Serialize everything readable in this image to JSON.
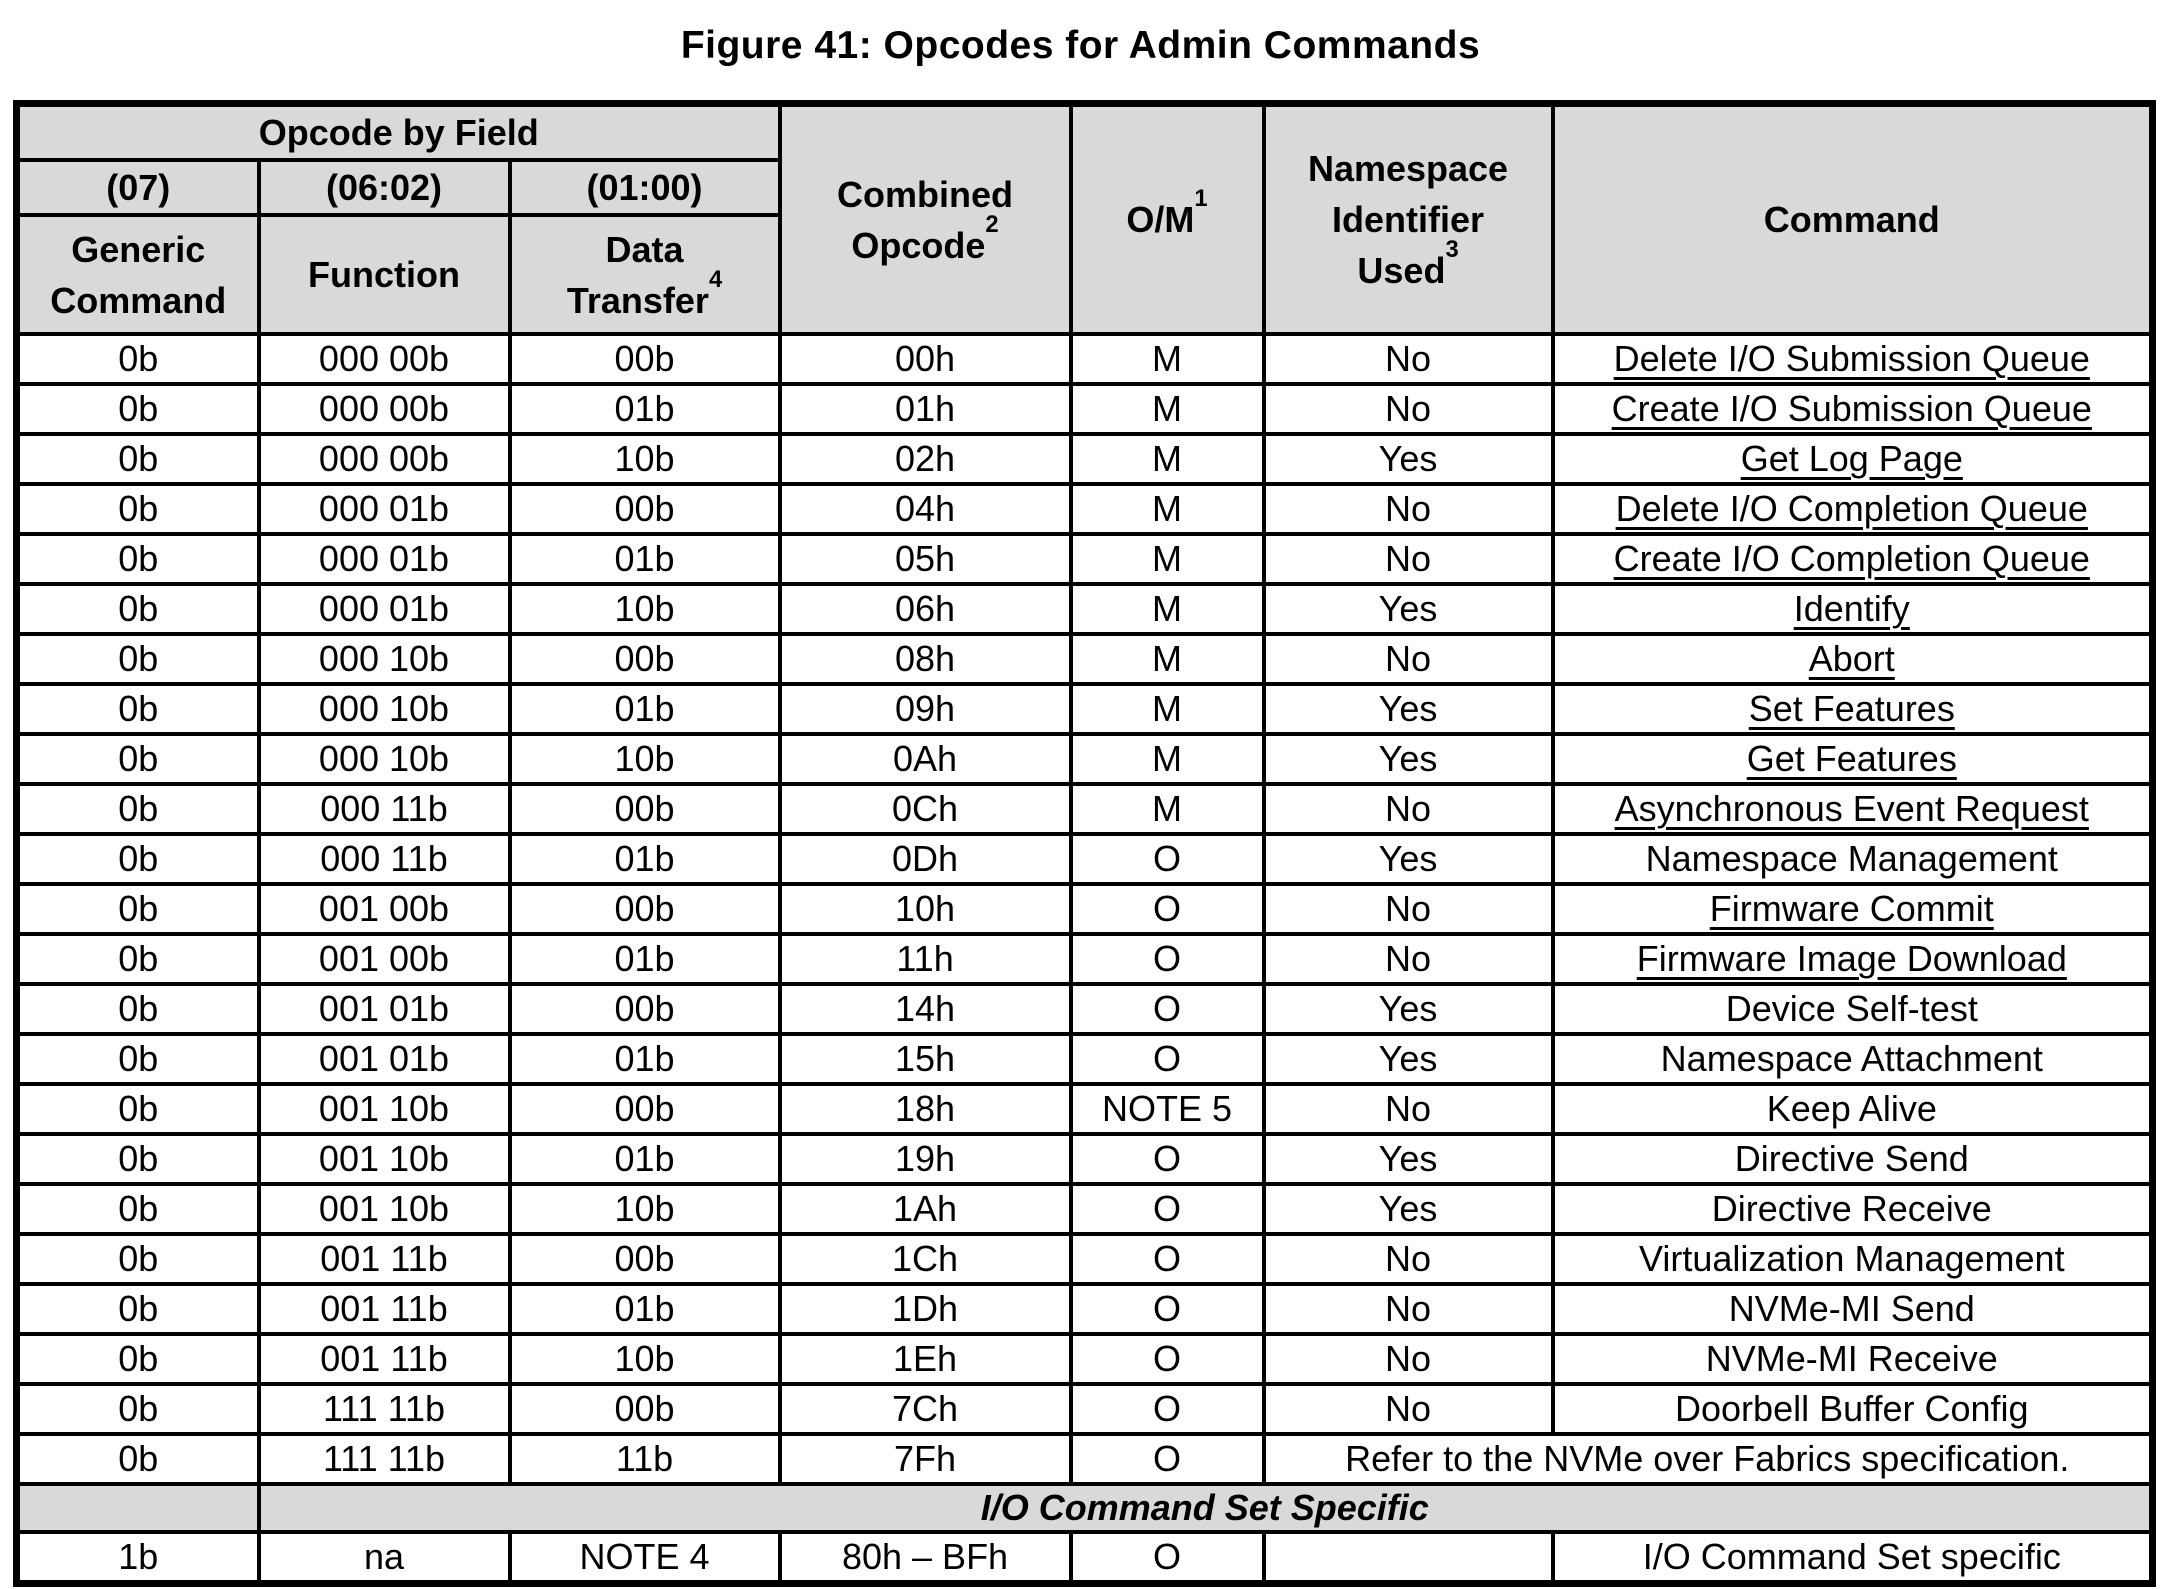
{
  "figure": {
    "title": "Figure 41: Opcodes for Admin Commands"
  },
  "colors": {
    "header_bg": "#d9d9d9",
    "border": "#000000",
    "text": "#000000",
    "page_bg": "#ffffff"
  },
  "table": {
    "header": {
      "opcode_by_field": "Opcode by Field",
      "bits_07": "(07)",
      "bits_0602": "(06:02)",
      "bits_0100": "(01:00)",
      "generic_line1": "Generic",
      "generic_line2": "Command",
      "function": "Function",
      "transfer_line1": "Data",
      "transfer_line2": "Transfer",
      "transfer_sup": "4",
      "combined_line1": "Combined",
      "combined_line2": "Opcode",
      "combined_sup": "2",
      "om": "O/M",
      "om_sup": "1",
      "nsid_line1": "Namespace",
      "nsid_line2": "Identifier",
      "nsid_line3": "Used",
      "nsid_sup": "3",
      "command": "Command"
    },
    "rows": [
      {
        "generic": "0b",
        "function": "000 00b",
        "transfer": "00b",
        "opcode": "00h",
        "om": "M",
        "nsid": "No",
        "command": "Delete I/O Submission Queue",
        "underline": true
      },
      {
        "generic": "0b",
        "function": "000 00b",
        "transfer": "01b",
        "opcode": "01h",
        "om": "M",
        "nsid": "No",
        "command": "Create I/O Submission Queue",
        "underline": true
      },
      {
        "generic": "0b",
        "function": "000 00b",
        "transfer": "10b",
        "opcode": "02h",
        "om": "M",
        "nsid": "Yes",
        "command": "Get Log Page",
        "underline": true
      },
      {
        "generic": "0b",
        "function": "000 01b",
        "transfer": "00b",
        "opcode": "04h",
        "om": "M",
        "nsid": "No",
        "command": "Delete I/O Completion Queue",
        "underline": true
      },
      {
        "generic": "0b",
        "function": "000 01b",
        "transfer": "01b",
        "opcode": "05h",
        "om": "M",
        "nsid": "No",
        "command": "Create I/O Completion Queue",
        "underline": true
      },
      {
        "generic": "0b",
        "function": "000 01b",
        "transfer": "10b",
        "opcode": "06h",
        "om": "M",
        "nsid": "Yes",
        "command": "Identify",
        "underline": true
      },
      {
        "generic": "0b",
        "function": "000 10b",
        "transfer": "00b",
        "opcode": "08h",
        "om": "M",
        "nsid": "No",
        "command": "Abort",
        "underline": true
      },
      {
        "generic": "0b",
        "function": "000 10b",
        "transfer": "01b",
        "opcode": "09h",
        "om": "M",
        "nsid": "Yes",
        "command": "Set Features",
        "underline": true
      },
      {
        "generic": "0b",
        "function": "000 10b",
        "transfer": "10b",
        "opcode": "0Ah",
        "om": "M",
        "nsid": "Yes",
        "command": "Get Features",
        "underline": true
      },
      {
        "generic": "0b",
        "function": "000 11b",
        "transfer": "00b",
        "opcode": "0Ch",
        "om": "M",
        "nsid": "No",
        "command": "Asynchronous Event Request",
        "underline": true
      },
      {
        "generic": "0b",
        "function": "000 11b",
        "transfer": "01b",
        "opcode": "0Dh",
        "om": "O",
        "nsid": "Yes",
        "command": "Namespace Management",
        "underline": false
      },
      {
        "generic": "0b",
        "function": "001 00b",
        "transfer": "00b",
        "opcode": "10h",
        "om": "O",
        "nsid": "No",
        "command": "Firmware Commit",
        "underline": true
      },
      {
        "generic": "0b",
        "function": "001 00b",
        "transfer": "01b",
        "opcode": "11h",
        "om": "O",
        "nsid": "No",
        "command": "Firmware Image Download",
        "underline": true
      },
      {
        "generic": "0b",
        "function": "001 01b",
        "transfer": "00b",
        "opcode": "14h",
        "om": "O",
        "nsid": "Yes",
        "command": "Device Self-test",
        "underline": false
      },
      {
        "generic": "0b",
        "function": "001 01b",
        "transfer": "01b",
        "opcode": "15h",
        "om": "O",
        "nsid": "Yes",
        "command": "Namespace Attachment",
        "underline": false
      },
      {
        "generic": "0b",
        "function": "001 10b",
        "transfer": "00b",
        "opcode": "18h",
        "om": "NOTE 5",
        "nsid": "No",
        "command": "Keep Alive",
        "underline": false
      },
      {
        "generic": "0b",
        "function": "001 10b",
        "transfer": "01b",
        "opcode": "19h",
        "om": "O",
        "nsid": "Yes",
        "command": "Directive Send",
        "underline": false
      },
      {
        "generic": "0b",
        "function": "001 10b",
        "transfer": "10b",
        "opcode": "1Ah",
        "om": "O",
        "nsid": "Yes",
        "command": "Directive Receive",
        "underline": false
      },
      {
        "generic": "0b",
        "function": "001 11b",
        "transfer": "00b",
        "opcode": "1Ch",
        "om": "O",
        "nsid": "No",
        "command": "Virtualization Management",
        "underline": false
      },
      {
        "generic": "0b",
        "function": "001 11b",
        "transfer": "01b",
        "opcode": "1Dh",
        "om": "O",
        "nsid": "No",
        "command": "NVMe-MI Send",
        "underline": false
      },
      {
        "generic": "0b",
        "function": "001 11b",
        "transfer": "10b",
        "opcode": "1Eh",
        "om": "O",
        "nsid": "No",
        "command": "NVMe-MI Receive",
        "underline": false
      },
      {
        "generic": "0b",
        "function": "111 11b",
        "transfer": "00b",
        "opcode": "7Ch",
        "om": "O",
        "nsid": "No",
        "command": "Doorbell Buffer Config",
        "underline": false
      },
      {
        "generic": "0b",
        "function": "111 11b",
        "transfer": "11b",
        "opcode": "7Fh",
        "om": "O",
        "note": "Refer to the NVMe over Fabrics specification."
      }
    ],
    "section_label": "I/O Command Set Specific",
    "io_row": {
      "generic": "1b",
      "function": "na",
      "transfer": "NOTE 4",
      "opcode": "80h – BFh",
      "om": "O",
      "nsid": "",
      "command": "I/O Command Set specific"
    }
  }
}
